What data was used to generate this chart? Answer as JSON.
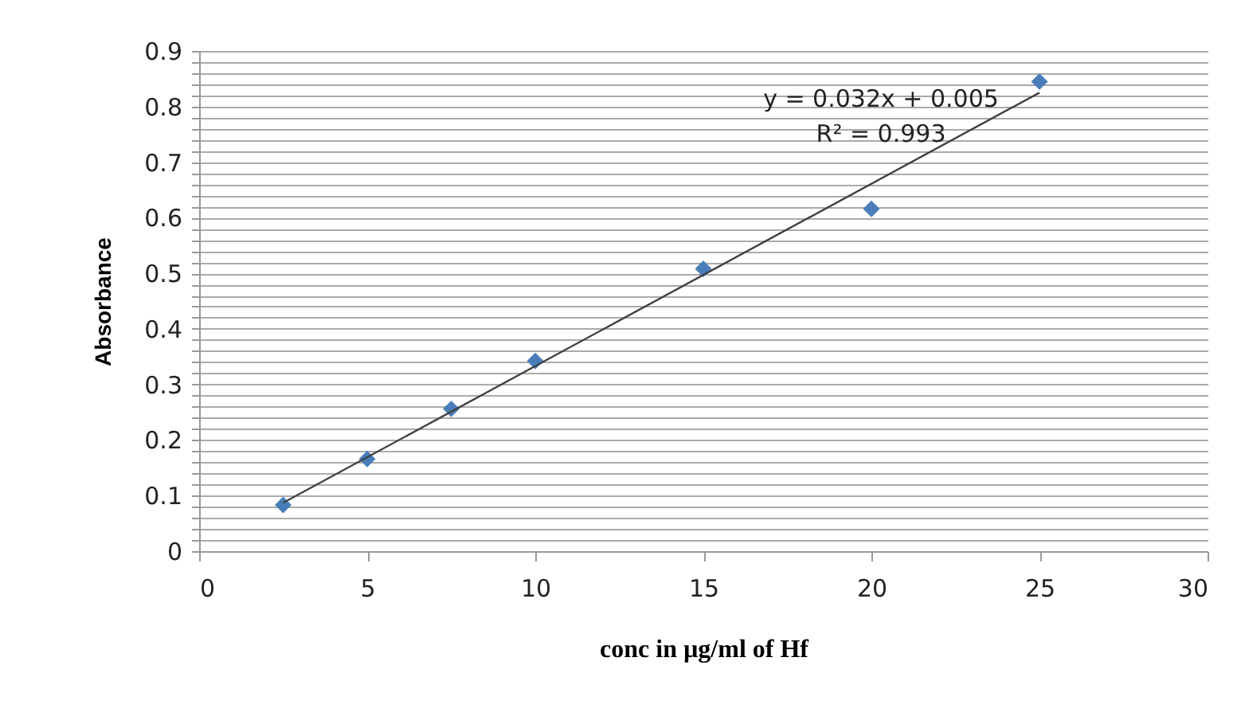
{
  "chart_data": {
    "type": "scatter",
    "xlabel": "conc in µg/ml of Hf",
    "ylabel": "Absorbance",
    "xlim": [
      0,
      30
    ],
    "xticks": [
      0,
      5,
      10,
      15,
      20,
      25,
      30
    ],
    "ylim": [
      0,
      0.9
    ],
    "yticks": [
      0,
      {
        "value": 0.02,
        "label": null
      },
      {
        "value": 0.04,
        "label": null
      },
      {
        "value": 0.06,
        "label": null
      },
      {
        "value": 0.08,
        "label": null
      },
      0.1,
      {
        "value": 0.12,
        "label": null
      },
      {
        "value": 0.14,
        "label": null
      },
      {
        "value": 0.16,
        "label": null
      },
      {
        "value": 0.18,
        "label": null
      },
      0.2,
      {
        "value": 0.22,
        "label": null
      },
      {
        "value": 0.24,
        "label": null
      },
      {
        "value": 0.26,
        "label": null
      },
      {
        "value": 0.28,
        "label": null
      },
      0.3,
      {
        "value": 0.32,
        "label": null
      },
      {
        "value": 0.34,
        "label": null
      },
      {
        "value": 0.36,
        "label": null
      },
      {
        "value": 0.38,
        "label": null
      },
      0.4,
      {
        "value": 0.42,
        "label": null
      },
      {
        "value": 0.44,
        "label": null
      },
      {
        "value": 0.46,
        "label": null
      },
      {
        "value": 0.48,
        "label": null
      },
      0.5,
      {
        "value": 0.52,
        "label": null
      },
      {
        "value": 0.54,
        "label": null
      },
      {
        "value": 0.56,
        "label": null
      },
      {
        "value": 0.58,
        "label": null
      },
      0.6,
      {
        "value": 0.62,
        "label": null
      },
      {
        "value": 0.64,
        "label": null
      },
      {
        "value": 0.66,
        "label": null
      },
      {
        "value": 0.68,
        "label": null
      },
      0.7,
      {
        "value": 0.72,
        "label": null
      },
      {
        "value": 0.74,
        "label": null
      },
      {
        "value": 0.76,
        "label": null
      },
      {
        "value": 0.78,
        "label": null
      },
      0.8,
      {
        "value": 0.82,
        "label": null
      },
      {
        "value": 0.84,
        "label": null
      },
      {
        "value": 0.86,
        "label": null
      },
      {
        "value": 0.88,
        "label": null
      },
      0.9
    ],
    "grid": "y",
    "marker": "diamond",
    "series": [
      {
        "color": "#4a7ebb",
        "x": [
          2.5,
          5,
          7.5,
          10,
          15,
          20,
          25
        ],
        "values": [
          0.083,
          0.166,
          0.256,
          0.342,
          0.508,
          0.616,
          0.845
        ]
      },
      {
        "type": "line",
        "color": "#404040",
        "line_style": "solid",
        "marker": "none",
        "x": [
          2.5,
          25
        ],
        "values": [
          0.087,
          0.825
        ]
      }
    ],
    "annotations": [
      "y = 0.032x + 0.005",
      "R² = 0.993"
    ]
  }
}
